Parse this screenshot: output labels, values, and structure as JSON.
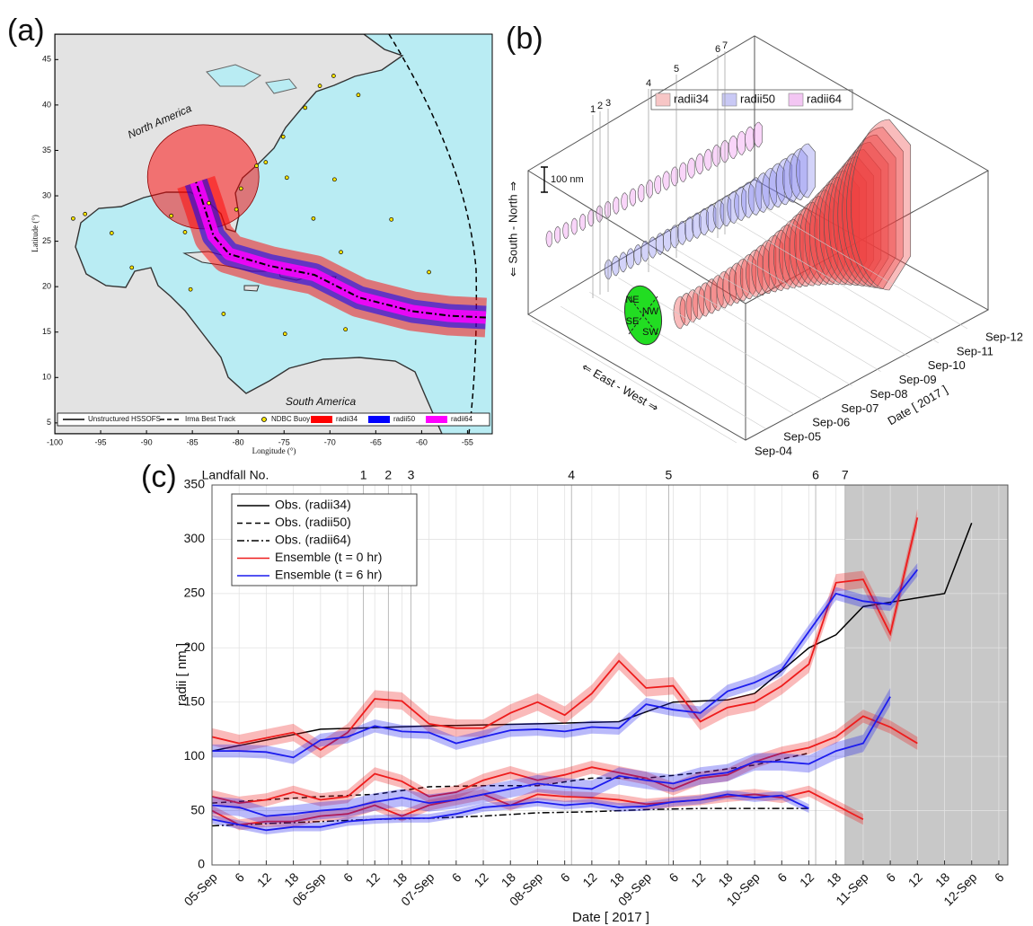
{
  "chart_data": [
    {
      "type": "map",
      "label": "(a)",
      "xlabel": "Longitude (°)",
      "ylabel": "Latitude (°)",
      "xlim": [
        -100,
        -52.3
      ],
      "ylim": [
        3.8,
        47.8
      ],
      "xticks": [
        -100,
        -95,
        -90,
        -85,
        -80,
        -75,
        -70,
        -65,
        -60,
        -55
      ],
      "yticks": [
        5,
        10,
        15,
        20,
        25,
        30,
        35,
        40,
        45
      ],
      "region_labels": [
        "North America",
        "South America"
      ],
      "legend": [
        {
          "name": "Unstructured HSSOFS",
          "color": "#000000",
          "style": "solid"
        },
        {
          "name": "Irma Best Track",
          "color": "#000000",
          "style": "dashed"
        },
        {
          "name": "NDBC Buoy",
          "color": "#ffe600",
          "style": "dot"
        },
        {
          "name": "radii34",
          "color": "#ff0000",
          "style": "patch"
        },
        {
          "name": "radii50",
          "color": "#0000ff",
          "style": "patch"
        },
        {
          "name": "radii64",
          "color": "#ff00ff",
          "style": "patch"
        }
      ],
      "track": {
        "lon": [
          -53,
          -57,
          -61,
          -66.8,
          -71.7,
          -76.6,
          -81,
          -82.7,
          -83.7,
          -84.6
        ],
        "lat": [
          16.6,
          16.8,
          17.3,
          18.8,
          21.3,
          22.3,
          23.6,
          25.6,
          28.8,
          31.5
        ]
      },
      "buoys": {
        "lon": [
          -69.6,
          -66.9,
          -71.1,
          -72.7,
          -75.1,
          -77.0,
          -78.0,
          -79.7,
          -83.2,
          -80.2,
          -74.7,
          -69.5,
          -63.3,
          -71.8,
          -68.8,
          -87.3,
          -93.8,
          -96.7,
          -98.0,
          -85.8,
          -91.6,
          -85.2,
          -81.6,
          -74.9,
          -68.3,
          -59.2
        ],
        "lat": [
          43.2,
          41.1,
          42.1,
          39.7,
          36.5,
          33.7,
          33.3,
          30.8,
          29.2,
          28.5,
          32.0,
          31.8,
          27.4,
          27.5,
          23.8,
          27.8,
          25.9,
          28.0,
          27.5,
          26.0,
          22.1,
          19.7,
          17.0,
          14.8,
          15.3,
          21.6
        ]
      }
    },
    {
      "type": "3d",
      "label": "(b)",
      "legend": [
        {
          "name": "radii34",
          "color": "#f7c6c6"
        },
        {
          "name": "radii50",
          "color": "#c9c9f5"
        },
        {
          "name": "radii64",
          "color": "#f3c6f3"
        }
      ],
      "scale_bar": "100 nm",
      "zlabel": "⇐ South - North ⇒",
      "xlabel": "⇐ East - West ⇒",
      "ylabel": "Date [ 2017 ]",
      "date_ticks": [
        "Sep-04",
        "Sep-05",
        "Sep-06",
        "Sep-07",
        "Sep-08",
        "Sep-09",
        "Sep-10",
        "Sep-11",
        "Sep-12"
      ],
      "landfall_numbers": [
        1,
        2,
        3,
        4,
        5,
        6,
        7
      ],
      "compass": [
        "NE",
        "NW",
        "SE",
        "SW"
      ]
    },
    {
      "type": "line",
      "label": "(c)",
      "xlabel": "Date [ 2017 ]",
      "ylabel": "radii [ nm ]",
      "xlim": [
        0,
        176
      ],
      "ylim": [
        0,
        350
      ],
      "yticks": [
        0,
        50,
        100,
        150,
        200,
        250,
        300,
        350
      ],
      "grid": true,
      "xticks": [
        {
          "value": 0,
          "label": "05-Sep"
        },
        6,
        12,
        18,
        {
          "value": 24,
          "label": "06-Sep"
        },
        {
          "value": 30,
          "label": "6"
        },
        {
          "value": 36,
          "label": "12"
        },
        {
          "value": 42,
          "label": "18"
        },
        {
          "value": 48,
          "label": "07-Sep"
        },
        {
          "value": 54,
          "label": "6"
        },
        {
          "value": 60,
          "label": "12"
        },
        {
          "value": 66,
          "label": "18"
        },
        {
          "value": 72,
          "label": "08-Sep"
        },
        {
          "value": 78,
          "label": "6"
        },
        {
          "value": 84,
          "label": "12"
        },
        {
          "value": 90,
          "label": "18"
        },
        {
          "value": 96,
          "label": "09-Sep"
        },
        {
          "value": 102,
          "label": "6"
        },
        {
          "value": 108,
          "label": "12"
        },
        {
          "value": 114,
          "label": "18"
        },
        {
          "value": 120,
          "label": "10-Sep"
        },
        {
          "value": 126,
          "label": "6"
        },
        {
          "value": 132,
          "label": "12"
        },
        {
          "value": 138,
          "label": "18"
        },
        {
          "value": 144,
          "label": "11-Sep"
        },
        {
          "value": 150,
          "label": "6"
        },
        {
          "value": 156,
          "label": "12"
        },
        {
          "value": 162,
          "label": "18"
        },
        {
          "value": 168,
          "label": "12-Sep"
        },
        {
          "value": 174,
          "label": "6"
        }
      ],
      "shaded_region": [
        140,
        176
      ],
      "landfall": {
        "title": "Landfall No.",
        "numbers": [
          1,
          2,
          3,
          4,
          5,
          6,
          7
        ],
        "x": [
          33.5,
          39,
          44,
          79.5,
          101,
          133.5,
          140
        ]
      },
      "series": [
        {
          "name": "Obs. (radii34)",
          "color": "#000000",
          "dash": "none",
          "x": [
            0,
            24,
            48,
            72,
            90,
            102,
            114,
            120,
            132,
            138,
            144,
            162,
            168
          ],
          "values": [
            105,
            125,
            128,
            130,
            132,
            150,
            152,
            158,
            200,
            212,
            238,
            250,
            315
          ]
        },
        {
          "name": "Obs. (radii50)",
          "color": "#000000",
          "dash": "6,4",
          "x": [
            0,
            12,
            24,
            36,
            48,
            60,
            72,
            84,
            96,
            108,
            120,
            132
          ],
          "values": [
            57,
            60,
            63,
            65,
            72,
            73,
            73,
            80,
            80,
            85,
            92,
            103
          ]
        },
        {
          "name": "Obs. (radii64)",
          "color": "#000000",
          "dash": "8,3,2,3",
          "x": [
            0,
            12,
            24,
            36,
            48,
            60,
            72,
            84,
            96,
            108,
            120,
            132
          ],
          "values": [
            36,
            38,
            40,
            42,
            43,
            45,
            48,
            49,
            51,
            52,
            52,
            52
          ]
        },
        {
          "name": "Ensemble (t = 0 hr)",
          "color": "#ee1c1c",
          "dash": "none",
          "curves": [
            {
              "spread": 8,
              "values": [
                118,
                112,
                117,
                122,
                106,
                122,
                153,
                151,
                130,
                126,
                126,
                140,
                150,
                138,
                158,
                188,
                163,
                165,
                132,
                145,
                150,
                165,
                185,
                260,
                263,
                213,
                320
              ]
            },
            {
              "spread": 6,
              "values": [
                63,
                57,
                60,
                67,
                60,
                63,
                84,
                77,
                63,
                67,
                78,
                85,
                78,
                83,
                90,
                85,
                80,
                70,
                80,
                83,
                95,
                103,
                108,
                118,
                137,
                127,
                112
              ]
            },
            {
              "spread": 5,
              "values": [
                50,
                37,
                40,
                40,
                45,
                47,
                55,
                45,
                55,
                60,
                65,
                55,
                65,
                63,
                62,
                60,
                56,
                58,
                60,
                63,
                65,
                62,
                68,
                55,
                42
              ]
            }
          ]
        },
        {
          "name": "Ensemble (t = 6 hr)",
          "color": "#1c1cee",
          "dash": "none",
          "curves": [
            {
              "spread": 6,
              "values": [
                105,
                105,
                104,
                99,
                115,
                118,
                128,
                123,
                122,
                112,
                118,
                124,
                125,
                123,
                127,
                126,
                148,
                143,
                140,
                160,
                168,
                180,
                215,
                250,
                243,
                240,
                272
              ]
            },
            {
              "spread": 8,
              "values": [
                55,
                53,
                45,
                47,
                50,
                52,
                58,
                62,
                57,
                60,
                65,
                70,
                75,
                72,
                70,
                82,
                78,
                75,
                82,
                85,
                95,
                95,
                93,
                105,
                112,
                155
              ]
            },
            {
              "spread": 4,
              "values": [
                42,
                37,
                32,
                35,
                35,
                40,
                42,
                43,
                43,
                47,
                53,
                55,
                58,
                55,
                57,
                53,
                54,
                58,
                60,
                65,
                62,
                64,
                52
              ]
            }
          ]
        }
      ]
    }
  ]
}
